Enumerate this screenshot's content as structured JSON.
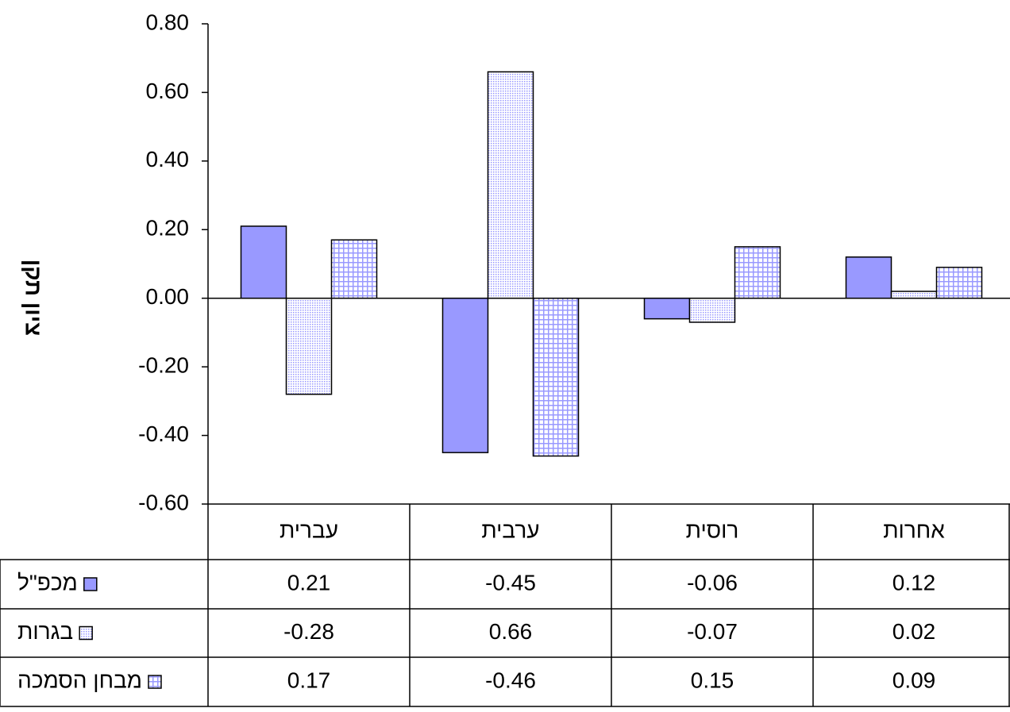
{
  "chart_data": {
    "type": "bar",
    "y_label": "ציון תקן",
    "categories": [
      "עברית",
      "ערבית",
      "רוסית",
      "אחרות"
    ],
    "series": [
      {
        "name": "מכפ\"ל",
        "color": "#9999ff",
        "pattern": "solid",
        "values": [
          0.21,
          -0.45,
          -0.06,
          0.12
        ]
      },
      {
        "name": "בגרות",
        "color": "#9999ff",
        "pattern": "dots",
        "values": [
          -0.28,
          0.66,
          -0.07,
          0.02
        ]
      },
      {
        "name": "מבחן הסמכה",
        "color": "#9999ff",
        "pattern": "grid",
        "values": [
          0.17,
          -0.46,
          0.15,
          0.09
        ]
      }
    ],
    "ylim": [
      -0.6,
      0.8
    ],
    "yticks": [
      {
        "value": -0.6,
        "label": "-0.60"
      },
      {
        "value": -0.4,
        "label": "-0.40"
      },
      {
        "value": -0.2,
        "label": "-0.20"
      },
      {
        "value": 0,
        "label": "0.00"
      },
      {
        "value": 0.2,
        "label": "0.20"
      },
      {
        "value": 0.4,
        "label": "0.40"
      },
      {
        "value": 0.6,
        "label": "0.60"
      },
      {
        "value": 0.8,
        "label": "0.80"
      }
    ],
    "data_table": true
  }
}
